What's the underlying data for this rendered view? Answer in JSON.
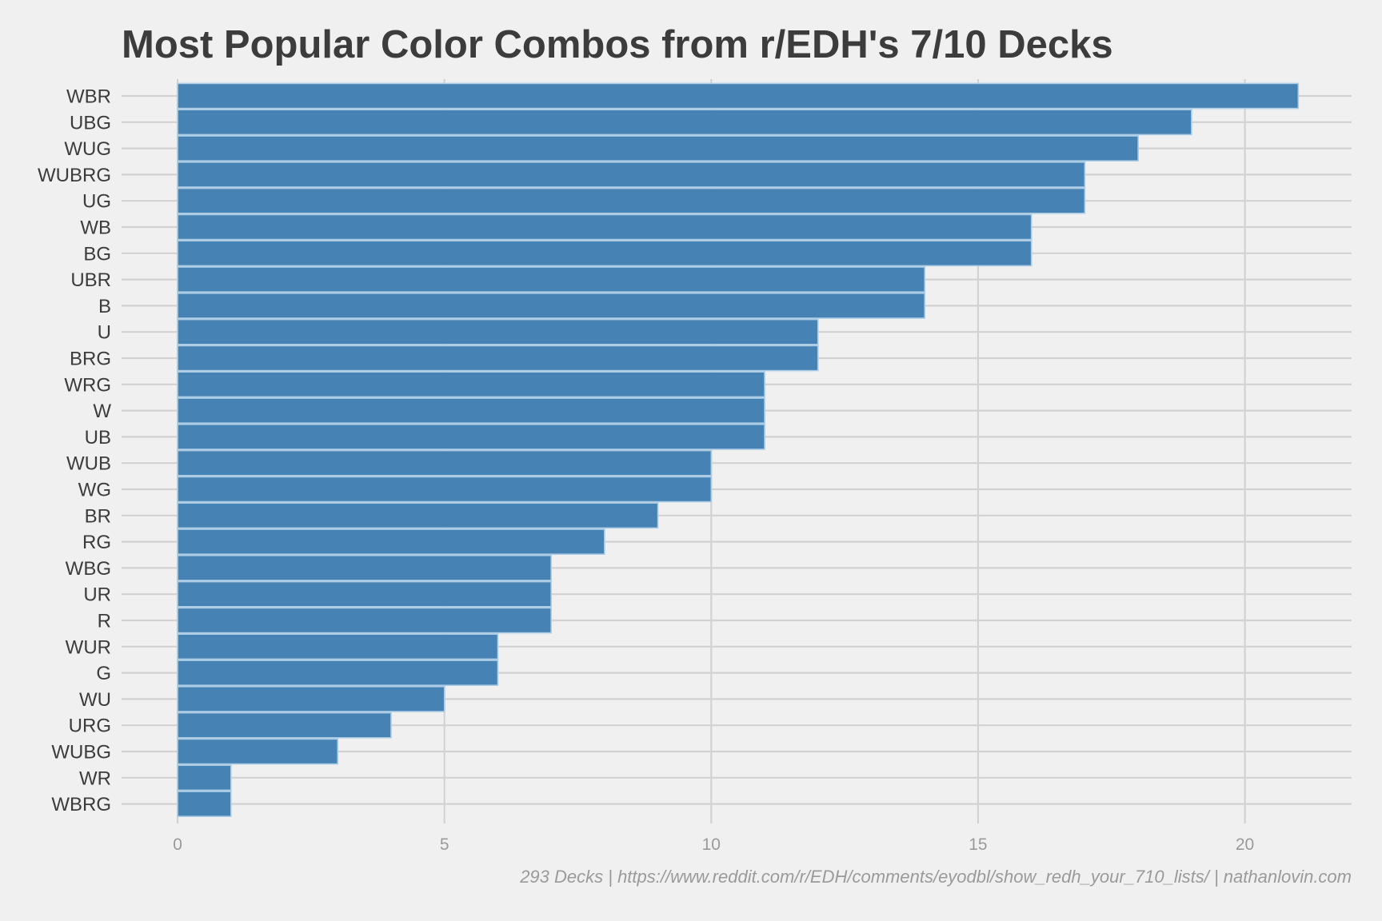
{
  "chart_data": {
    "type": "bar",
    "orientation": "horizontal",
    "title": "Most Popular Color Combos from r/EDH's 7/10 Decks",
    "caption": "293 Decks | https://www.reddit.com/r/EDH/comments/eyodbl/show_redh_your_710_lists/ | nathanlovin.com",
    "categories": [
      "WBR",
      "UBG",
      "WUG",
      "WUBRG",
      "UG",
      "WB",
      "BG",
      "UBR",
      "B",
      "U",
      "BRG",
      "WRG",
      "W",
      "UB",
      "WUB",
      "WG",
      "BR",
      "RG",
      "WBG",
      "UR",
      "R",
      "WUR",
      "G",
      "WU",
      "URG",
      "WUBG",
      "WR",
      "WBRG"
    ],
    "values": [
      21,
      19,
      18,
      17,
      17,
      16,
      16,
      14,
      14,
      12,
      12,
      11,
      11,
      11,
      10,
      10,
      9,
      8,
      7,
      7,
      7,
      6,
      6,
      5,
      4,
      3,
      1,
      1
    ],
    "xticks": [
      0,
      5,
      10,
      15,
      20
    ],
    "xlim": [
      -1.05,
      22
    ],
    "xlabel": "",
    "ylabel": "",
    "grid": true,
    "legend": "none",
    "colors": {
      "background": "#f0f0f0",
      "bar_fill": "#4682b4",
      "bar_outline": "#a9cbe4",
      "grid": "#d2d2d2",
      "title": "#3c3c3c",
      "category_text": "#3c3c3c",
      "tick_text": "#9a9a9a"
    }
  }
}
